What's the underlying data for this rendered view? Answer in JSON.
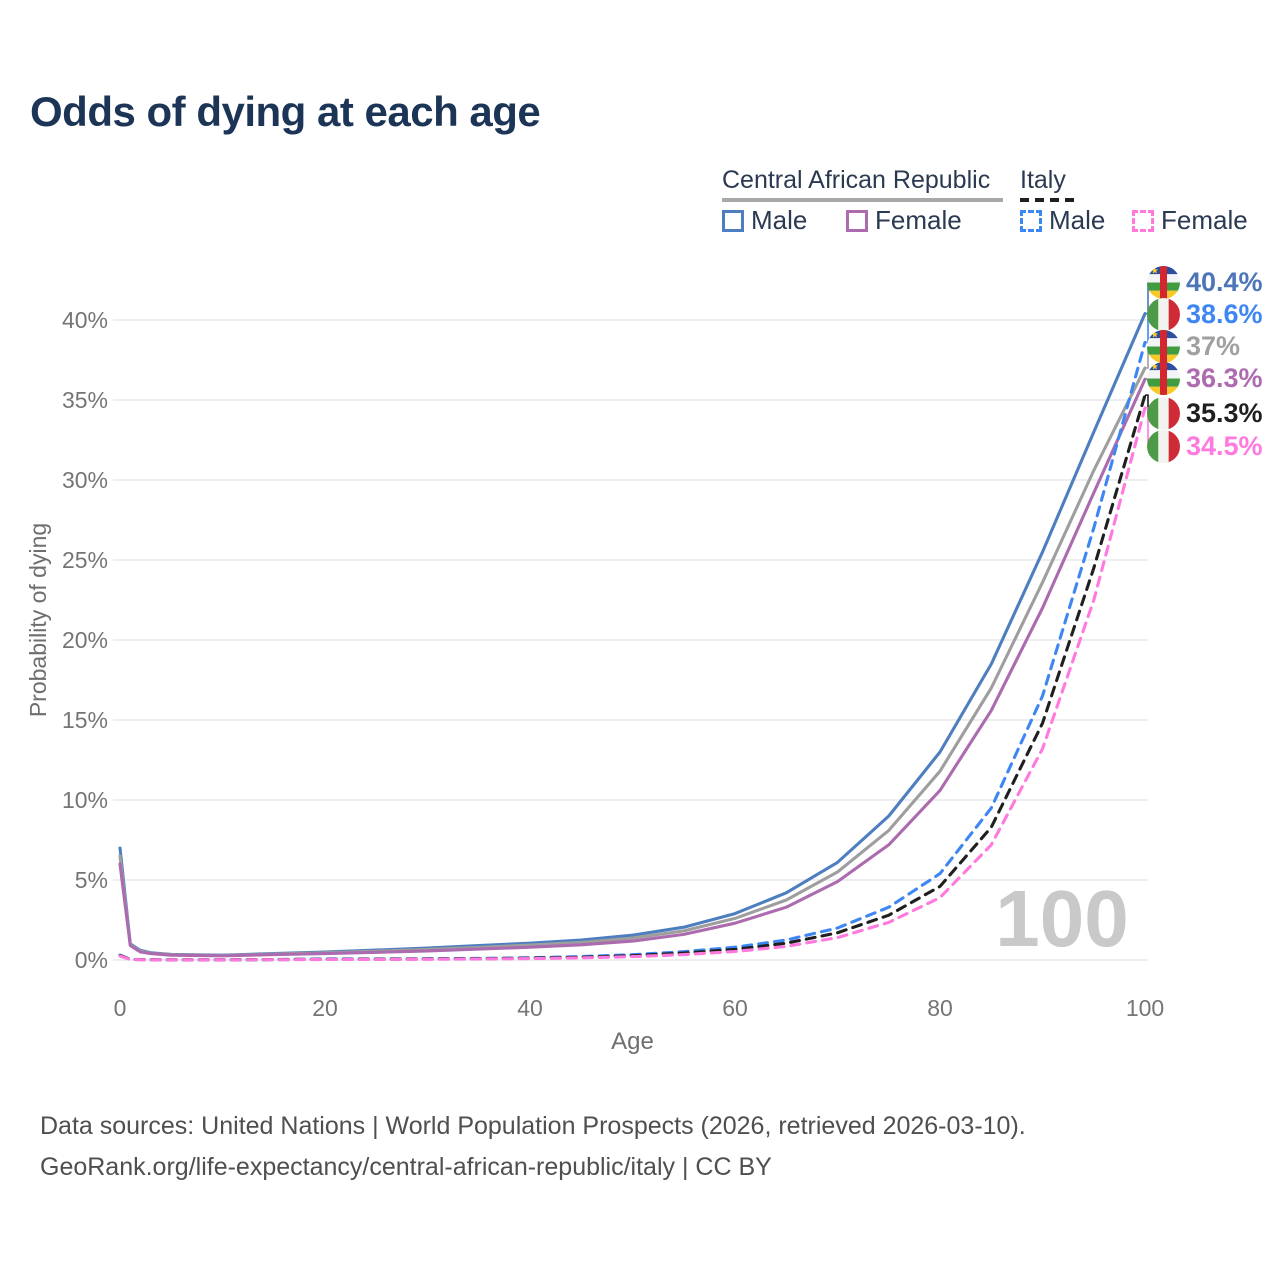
{
  "title": "Odds of dying at each age",
  "legend": {
    "groups": [
      {
        "label": "Central African Republic",
        "line_style": "solid",
        "underline_color": "#a8a8a8",
        "items": [
          {
            "label": "Male",
            "color": "#4d7ec0"
          },
          {
            "label": "Female",
            "color": "#ab6bae"
          }
        ]
      },
      {
        "label": "Italy",
        "line_style": "dashed",
        "underline_color": "#1f1f1f",
        "items": [
          {
            "label": "Male",
            "color": "#3e87f3"
          },
          {
            "label": "Female",
            "color": "#ff79de"
          }
        ]
      }
    ]
  },
  "chart_data": {
    "type": "line",
    "title": "Odds of dying at each age",
    "xlabel": "Age",
    "ylabel": "Probability of dying",
    "xlim": [
      0,
      100
    ],
    "ylim": [
      0,
      43
    ],
    "grid": true,
    "legend_position": "top-right",
    "hover_age": "100",
    "x_ticks": [
      0,
      20,
      40,
      60,
      80,
      100
    ],
    "y_ticks": {
      "values": [
        0,
        5,
        10,
        15,
        20,
        25,
        30,
        35,
        40
      ],
      "labels": [
        "0%",
        "5%",
        "10%",
        "15%",
        "20%",
        "25%",
        "30%",
        "35%",
        "40%"
      ]
    },
    "ages": [
      0,
      1,
      2,
      3,
      5,
      10,
      15,
      20,
      25,
      30,
      35,
      40,
      45,
      50,
      55,
      60,
      65,
      70,
      75,
      80,
      85,
      90,
      95,
      100
    ],
    "series": [
      {
        "id": "car-male",
        "name": "Central African Republic Male",
        "color": "#4d7ec0",
        "dashed": false,
        "end_label": "40.4%",
        "values": [
          7.0,
          1.0,
          0.6,
          0.45,
          0.35,
          0.3,
          0.4,
          0.5,
          0.62,
          0.75,
          0.9,
          1.05,
          1.25,
          1.55,
          2.05,
          2.9,
          4.2,
          6.1,
          9.0,
          13.0,
          18.5,
          25.5,
          33.0,
          40.4
        ]
      },
      {
        "id": "car-both",
        "name": "Central African Republic (both sexes)",
        "color": "#9e9e9e",
        "dashed": false,
        "end_label": "37%",
        "values": [
          6.5,
          0.95,
          0.55,
          0.42,
          0.33,
          0.28,
          0.37,
          0.45,
          0.55,
          0.66,
          0.79,
          0.93,
          1.1,
          1.37,
          1.82,
          2.6,
          3.75,
          5.5,
          8.1,
          11.8,
          17.0,
          23.6,
          30.6,
          37.0
        ]
      },
      {
        "id": "car-female",
        "name": "Central African Republic Female",
        "color": "#ab6bae",
        "dashed": false,
        "end_label": "36.3%",
        "values": [
          6.0,
          0.9,
          0.5,
          0.4,
          0.3,
          0.26,
          0.34,
          0.4,
          0.48,
          0.57,
          0.68,
          0.8,
          0.95,
          1.18,
          1.6,
          2.3,
          3.3,
          4.9,
          7.2,
          10.6,
          15.6,
          22.0,
          29.2,
          36.3
        ]
      },
      {
        "id": "italy-male",
        "name": "Italy Male",
        "color": "#3e87f3",
        "dashed": true,
        "end_label": "38.6%",
        "values": [
          0.3,
          0.04,
          0.03,
          0.02,
          0.01,
          0.01,
          0.03,
          0.06,
          0.07,
          0.08,
          0.1,
          0.14,
          0.21,
          0.33,
          0.52,
          0.8,
          1.25,
          2.0,
          3.3,
          5.4,
          9.5,
          16.5,
          27.0,
          38.6
        ]
      },
      {
        "id": "italy-both",
        "name": "Italy (both sexes)",
        "color": "#1f1f1f",
        "dashed": true,
        "end_label": "35.3%",
        "values": [
          0.28,
          0.035,
          0.025,
          0.02,
          0.01,
          0.01,
          0.025,
          0.045,
          0.05,
          0.06,
          0.08,
          0.11,
          0.17,
          0.27,
          0.43,
          0.66,
          1.05,
          1.7,
          2.8,
          4.6,
          8.3,
          14.8,
          24.5,
          35.3
        ]
      },
      {
        "id": "italy-female",
        "name": "Italy Female",
        "color": "#ff79de",
        "dashed": true,
        "end_label": "34.5%",
        "values": [
          0.25,
          0.03,
          0.02,
          0.015,
          0.01,
          0.01,
          0.02,
          0.03,
          0.035,
          0.045,
          0.06,
          0.09,
          0.13,
          0.21,
          0.34,
          0.53,
          0.85,
          1.4,
          2.35,
          3.9,
          7.2,
          13.2,
          22.5,
          34.5
        ]
      }
    ]
  },
  "endpoints": [
    {
      "flag": "car",
      "country": "Central African Republic",
      "label": "40.4%",
      "value": 40.4,
      "color": "#4d76b8"
    },
    {
      "flag": "italy",
      "country": "Italy",
      "label": "38.6%",
      "value": 38.6,
      "color": "#3e87f3"
    },
    {
      "flag": "car",
      "country": "Central African Republic",
      "label": "37%",
      "value": 37.0,
      "color": "#a0a0a0"
    },
    {
      "flag": "car",
      "country": "Central African Republic",
      "label": "36.3%",
      "value": 36.3,
      "color": "#ae6bb0"
    },
    {
      "flag": "italy",
      "country": "Italy",
      "label": "35.3%",
      "value": 35.3,
      "color": "#1f1f1f"
    },
    {
      "flag": "italy",
      "country": "Italy",
      "label": "34.5%",
      "value": 34.5,
      "color": "#ff79de"
    }
  ],
  "footer": {
    "line1": "Data sources: United Nations | World Population Prospects (2026, retrieved 2026-03-10).",
    "line2": "GeoRank.org/life-expectancy/central-african-republic/italy | CC BY"
  },
  "colors": {
    "title": "#1c3557",
    "grid": "#e9e9ed",
    "tick_text": "#757575",
    "watermark": "#c9c9c9",
    "footer_text": "#4f4f4f"
  }
}
